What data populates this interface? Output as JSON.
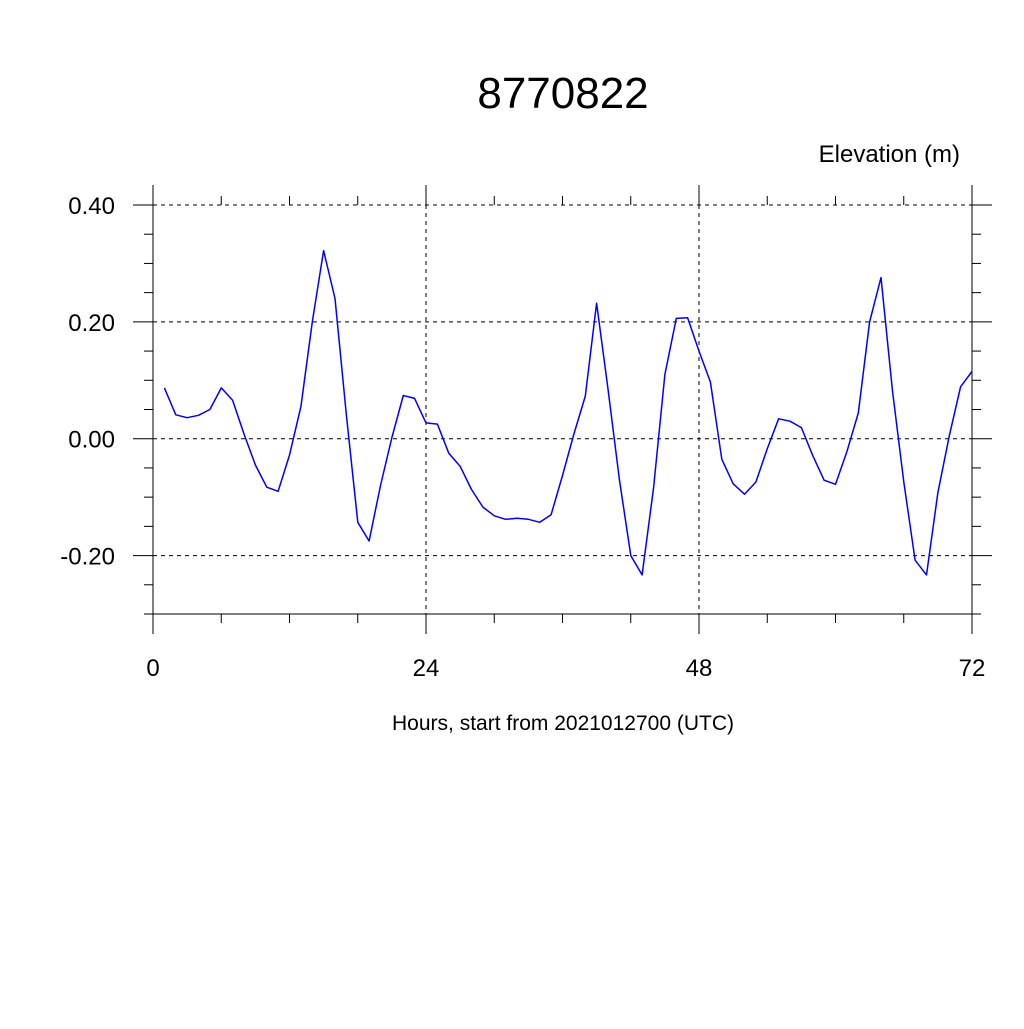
{
  "chart_data": {
    "type": "line",
    "title": "8770822",
    "ylabel": "Elevation (m)",
    "xlabel": "Hours, start from 2021012700 (UTC)",
    "xlim": [
      0,
      72
    ],
    "ylim": [
      -0.3,
      0.4
    ],
    "x_ticks": [
      0,
      24,
      48,
      72
    ],
    "x_tick_labels": [
      "0",
      "24",
      "48",
      "72"
    ],
    "y_ticks": [
      0.4,
      0.2,
      0.0,
      -0.2
    ],
    "y_tick_labels": [
      "0.40",
      "0.20",
      "0.00",
      "-0.20"
    ],
    "grid": true,
    "series": [
      {
        "color": "#0000ff",
        "x": [
          1,
          2,
          3,
          4,
          5,
          6,
          7,
          8,
          9,
          10,
          11,
          12,
          13,
          14,
          15,
          16,
          17,
          18,
          19,
          20,
          21,
          22,
          23,
          24,
          25,
          26,
          27,
          28,
          29,
          30,
          31,
          32,
          33,
          34,
          35,
          36,
          37,
          38,
          39,
          40,
          41,
          42,
          43,
          44,
          45,
          46,
          47,
          48,
          49,
          50,
          51,
          52,
          53,
          54,
          55,
          56,
          57,
          58,
          59,
          60,
          61,
          62,
          63,
          64,
          65,
          66,
          67,
          68,
          69,
          70,
          71,
          72
        ],
        "y": [
          0.087,
          0.041,
          0.036,
          0.04,
          0.05,
          0.087,
          0.066,
          0.008,
          -0.045,
          -0.083,
          -0.09,
          -0.028,
          0.055,
          0.2,
          0.322,
          0.24,
          0.04,
          -0.143,
          -0.175,
          -0.08,
          0.002,
          0.074,
          0.069,
          0.027,
          0.025,
          -0.025,
          -0.047,
          -0.087,
          -0.117,
          -0.132,
          -0.138,
          -0.136,
          -0.138,
          -0.143,
          -0.13,
          -0.063,
          0.008,
          0.073,
          0.232,
          0.085,
          -0.07,
          -0.2,
          -0.233,
          -0.085,
          0.11,
          0.206,
          0.207,
          0.15,
          0.097,
          -0.035,
          -0.077,
          -0.095,
          -0.074,
          -0.017,
          0.034,
          0.03,
          0.019,
          -0.029,
          -0.071,
          -0.078,
          -0.022,
          0.044,
          0.2,
          0.276,
          0.083,
          -0.074,
          -0.208,
          -0.233,
          -0.092,
          0.005,
          0.089,
          0.115
        ]
      }
    ]
  }
}
